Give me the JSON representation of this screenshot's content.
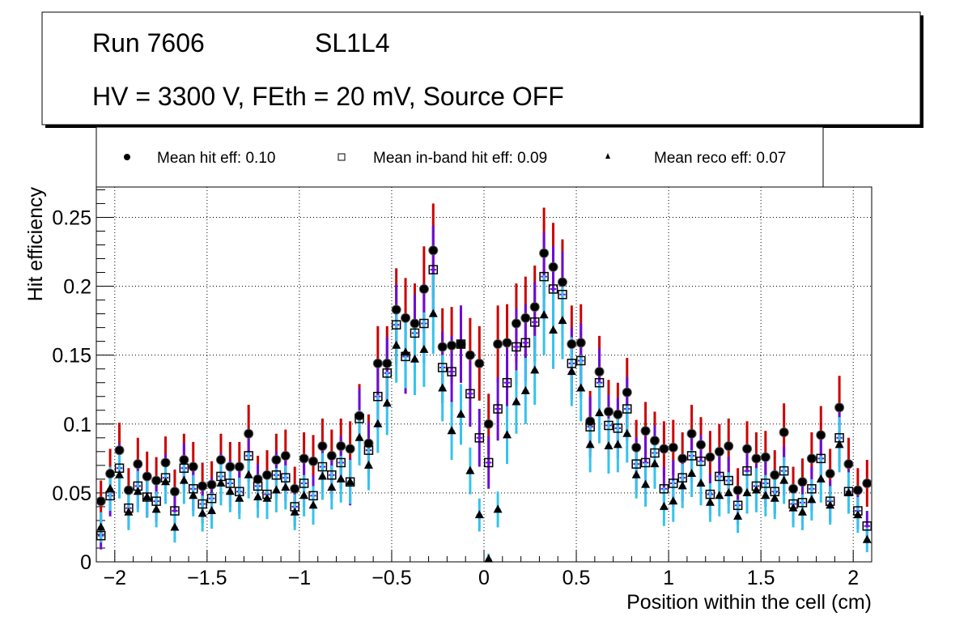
{
  "title_box": {
    "line1_left": "Run 7606",
    "line1_right": "SL1L4",
    "line2": "HV = 3300 V, FEth = 20 mV, Source OFF"
  },
  "chart_data": {
    "type": "scatter",
    "title": "Run 7606 SL1L4 — HV = 3300 V, FEth = 20 mV, Source OFF",
    "xlabel": "Position within the cell (cm)",
    "ylabel": "Hit efficiency",
    "xlim": [
      -2.1,
      2.1
    ],
    "ylim": [
      0,
      0.272
    ],
    "xticks": [
      -2,
      -1.5,
      -1,
      -0.5,
      0,
      0.5,
      1,
      1.5,
      2
    ],
    "xtick_labels": [
      "−2",
      "−1.5",
      "−1",
      "−0.5",
      "0",
      "0.5",
      "1",
      "1.5",
      "2"
    ],
    "yticks": [
      0,
      0.05,
      0.1,
      0.15,
      0.2,
      0.25
    ],
    "ytick_labels": [
      "0",
      "0.05",
      "0.1",
      "0.15",
      "0.2",
      "0.25"
    ],
    "grid": true,
    "legend_position": "top",
    "bin_start": -2.075,
    "bin_width": 0.05,
    "series": [
      {
        "name": "Mean hit  eff: 0.10",
        "marker": "circle",
        "marker_color": "#000000",
        "error_color": "#cc0000",
        "values": [
          0.044,
          0.064,
          0.081,
          0.052,
          0.071,
          0.062,
          0.059,
          0.072,
          0.051,
          0.074,
          0.069,
          0.055,
          0.056,
          0.074,
          0.069,
          0.069,
          0.093,
          0.06,
          0.063,
          0.074,
          0.077,
          0.053,
          0.075,
          0.073,
          0.084,
          0.077,
          0.084,
          0.082,
          0.106,
          0.086,
          0.144,
          0.144,
          0.183,
          0.177,
          0.173,
          0.198,
          0.226,
          0.156,
          0.157,
          0.158,
          0.15,
          0.144,
          0.1,
          0.158,
          0.159,
          0.173,
          0.177,
          0.185,
          0.224,
          0.214,
          0.203,
          0.158,
          0.159,
          0.102,
          0.138,
          0.109,
          0.107,
          0.123,
          0.083,
          0.095,
          0.088,
          0.082,
          0.083,
          0.075,
          0.093,
          0.085,
          0.076,
          0.08,
          0.084,
          0.052,
          0.082,
          0.075,
          0.076,
          0.063,
          0.094,
          0.053,
          0.058,
          0.075,
          0.092,
          0.064,
          0.112,
          0.071,
          0.052,
          0.057
        ],
        "errors": [
          0.015,
          0.018,
          0.02,
          0.016,
          0.019,
          0.018,
          0.017,
          0.019,
          0.016,
          0.019,
          0.018,
          0.017,
          0.017,
          0.019,
          0.018,
          0.018,
          0.021,
          0.017,
          0.018,
          0.019,
          0.019,
          0.016,
          0.019,
          0.019,
          0.02,
          0.019,
          0.02,
          0.02,
          0.023,
          0.021,
          0.027,
          0.027,
          0.03,
          0.029,
          0.029,
          0.031,
          0.034,
          0.028,
          0.028,
          0.028,
          0.027,
          0.027,
          0.022,
          0.028,
          0.028,
          0.029,
          0.03,
          0.03,
          0.033,
          0.032,
          0.031,
          0.028,
          0.028,
          0.022,
          0.026,
          0.023,
          0.023,
          0.025,
          0.02,
          0.021,
          0.021,
          0.02,
          0.02,
          0.019,
          0.021,
          0.02,
          0.019,
          0.02,
          0.02,
          0.016,
          0.02,
          0.019,
          0.019,
          0.018,
          0.021,
          0.016,
          0.017,
          0.019,
          0.021,
          0.018,
          0.023,
          0.019,
          0.016,
          0.017
        ]
      },
      {
        "name": "Mean in-band hit eff: 0.09",
        "marker": "open-square",
        "marker_color": "#000000",
        "error_color": "#6a0dd6",
        "values": [
          0.019,
          0.048,
          0.068,
          0.039,
          0.055,
          0.047,
          0.044,
          0.061,
          0.037,
          0.068,
          0.053,
          0.042,
          0.046,
          0.062,
          0.057,
          0.051,
          0.077,
          0.055,
          0.049,
          0.063,
          0.061,
          0.04,
          0.057,
          0.048,
          0.069,
          0.063,
          0.072,
          0.058,
          0.104,
          0.081,
          0.12,
          0.137,
          0.172,
          0.149,
          0.166,
          0.173,
          0.212,
          0.141,
          0.138,
          0.158,
          0.122,
          0.09,
          0.072,
          0.111,
          0.13,
          0.156,
          0.159,
          0.174,
          0.207,
          0.198,
          0.194,
          0.144,
          0.146,
          0.098,
          0.13,
          0.099,
          0.097,
          0.111,
          0.071,
          0.072,
          0.079,
          0.053,
          0.057,
          0.061,
          0.077,
          0.073,
          0.049,
          0.062,
          0.059,
          0.041,
          0.066,
          0.055,
          0.057,
          0.051,
          0.066,
          0.042,
          0.043,
          0.053,
          0.075,
          0.044,
          0.09,
          0.051,
          0.037,
          0.026
        ],
        "errors": [
          0.01,
          0.015,
          0.018,
          0.014,
          0.016,
          0.015,
          0.015,
          0.017,
          0.013,
          0.018,
          0.016,
          0.014,
          0.015,
          0.017,
          0.017,
          0.016,
          0.019,
          0.016,
          0.015,
          0.017,
          0.017,
          0.014,
          0.017,
          0.015,
          0.018,
          0.017,
          0.019,
          0.017,
          0.022,
          0.02,
          0.024,
          0.026,
          0.029,
          0.027,
          0.028,
          0.029,
          0.032,
          0.026,
          0.026,
          0.028,
          0.024,
          0.021,
          0.019,
          0.023,
          0.025,
          0.028,
          0.028,
          0.029,
          0.032,
          0.031,
          0.031,
          0.026,
          0.027,
          0.022,
          0.025,
          0.022,
          0.022,
          0.023,
          0.019,
          0.019,
          0.02,
          0.016,
          0.017,
          0.017,
          0.019,
          0.019,
          0.015,
          0.017,
          0.017,
          0.014,
          0.018,
          0.016,
          0.017,
          0.016,
          0.018,
          0.014,
          0.015,
          0.016,
          0.019,
          0.015,
          0.021,
          0.016,
          0.013,
          0.011
        ]
      },
      {
        "name": "Mean reco eff: 0.07",
        "marker": "triangle",
        "marker_color": "#000000",
        "error_color": "#33c3ee",
        "values": [
          0.025,
          0.053,
          0.063,
          0.036,
          0.051,
          0.047,
          0.038,
          0.058,
          0.025,
          0.059,
          0.048,
          0.035,
          0.037,
          0.057,
          0.051,
          0.046,
          0.063,
          0.047,
          0.046,
          0.052,
          0.054,
          0.036,
          0.048,
          0.041,
          0.062,
          0.054,
          0.06,
          0.058,
          0.09,
          0.07,
          0.1,
          0.115,
          0.157,
          0.152,
          0.147,
          0.154,
          0.18,
          0.126,
          0.095,
          0.107,
          0.066,
          0.034,
          0.002,
          0.038,
          0.092,
          0.116,
          0.124,
          0.139,
          0.179,
          0.168,
          0.175,
          0.138,
          0.126,
          0.085,
          0.108,
          0.084,
          0.085,
          0.093,
          0.063,
          0.056,
          0.071,
          0.04,
          0.044,
          0.055,
          0.064,
          0.057,
          0.043,
          0.048,
          0.05,
          0.033,
          0.05,
          0.052,
          0.048,
          0.046,
          0.059,
          0.039,
          0.036,
          0.045,
          0.06,
          0.041,
          0.085,
          0.05,
          0.034,
          0.016
        ],
        "errors": [
          0.011,
          0.016,
          0.017,
          0.013,
          0.015,
          0.015,
          0.013,
          0.016,
          0.011,
          0.017,
          0.015,
          0.013,
          0.013,
          0.016,
          0.015,
          0.015,
          0.017,
          0.015,
          0.015,
          0.016,
          0.016,
          0.013,
          0.015,
          0.014,
          0.017,
          0.016,
          0.017,
          0.016,
          0.02,
          0.018,
          0.021,
          0.023,
          0.027,
          0.026,
          0.026,
          0.027,
          0.029,
          0.024,
          0.021,
          0.022,
          0.017,
          0.012,
          0.004,
          0.013,
          0.021,
          0.023,
          0.024,
          0.025,
          0.029,
          0.028,
          0.028,
          0.025,
          0.024,
          0.02,
          0.022,
          0.02,
          0.02,
          0.021,
          0.017,
          0.016,
          0.018,
          0.014,
          0.015,
          0.016,
          0.017,
          0.016,
          0.014,
          0.015,
          0.015,
          0.012,
          0.015,
          0.016,
          0.015,
          0.015,
          0.017,
          0.014,
          0.013,
          0.015,
          0.017,
          0.014,
          0.02,
          0.015,
          0.013,
          0.009
        ]
      }
    ]
  }
}
